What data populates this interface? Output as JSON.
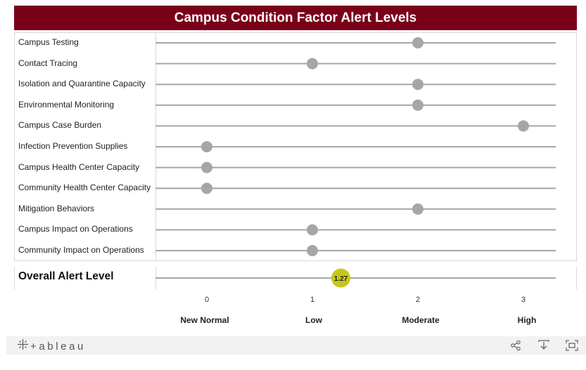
{
  "title": "Campus Condition Factor Alert Levels",
  "overall": {
    "label": "Overall Alert Level",
    "value": 1.27,
    "value_label": "1.27",
    "color": "#c7c71a"
  },
  "colors": {
    "title_bg": "#7a0019",
    "dot": "#a6a6a6",
    "line": "#a6a6a6"
  },
  "chart_data": {
    "type": "scatter",
    "title": "Campus Condition Factor Alert Levels",
    "xlim": [
      0,
      3
    ],
    "x_ticks": [
      0,
      1,
      2,
      3
    ],
    "level_labels": [
      "New Normal",
      "Low",
      "Moderate",
      "High"
    ],
    "factors": [
      {
        "name": "Campus Testing",
        "value": 2
      },
      {
        "name": "Contact Tracing",
        "value": 1
      },
      {
        "name": "Isolation and Quarantine Capacity",
        "value": 2
      },
      {
        "name": "Environmental Monitoring",
        "value": 2
      },
      {
        "name": "Campus Case Burden",
        "value": 3
      },
      {
        "name": "Infection Prevention Supplies",
        "value": 0
      },
      {
        "name": "Campus Health Center Capacity",
        "value": 0
      },
      {
        "name": "Community Health Center Capacity",
        "value": 0
      },
      {
        "name": "Mitigation Behaviors",
        "value": 2
      },
      {
        "name": "Campus Impact on Operations",
        "value": 1
      },
      {
        "name": "Community Impact on Operations",
        "value": 1
      }
    ]
  },
  "footer": {
    "logo_text": "+ableau",
    "icons": [
      "share-icon",
      "download-icon",
      "fullscreen-icon"
    ]
  }
}
